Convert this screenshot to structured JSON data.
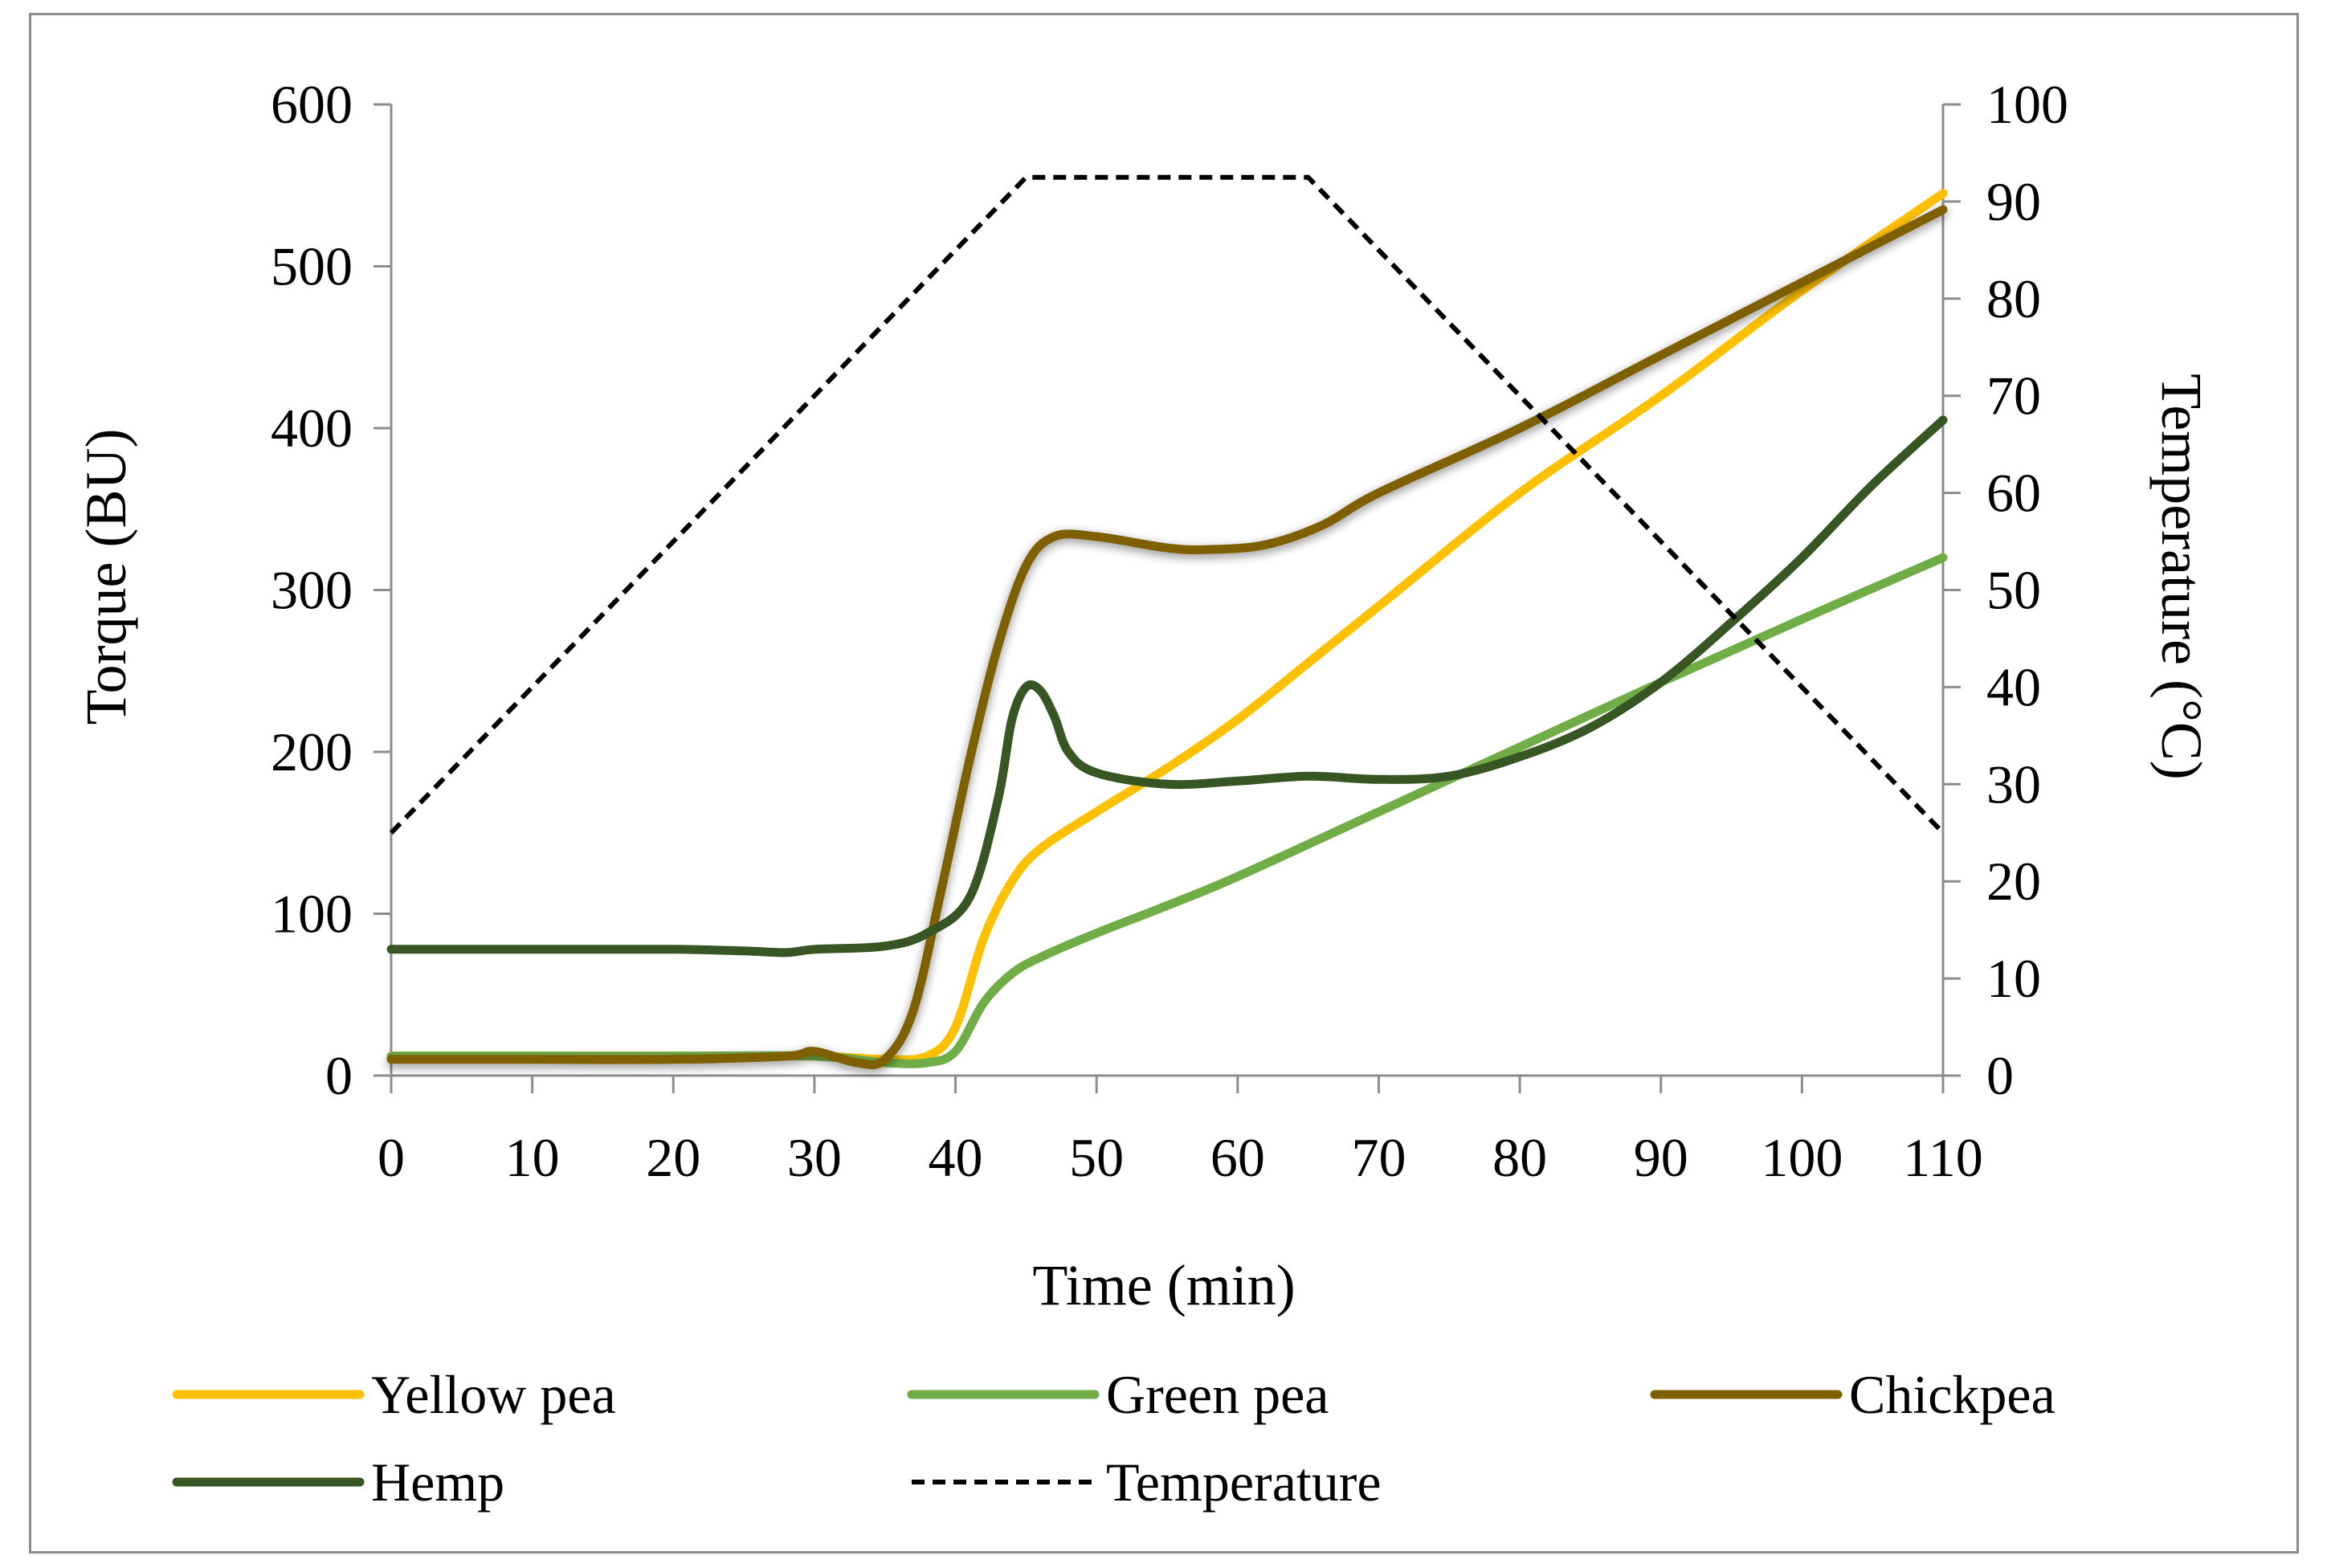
{
  "chart_data": {
    "type": "line",
    "title": "",
    "xlabel": "Time (min)",
    "ylabel": "Torque (BU)",
    "y2label": "Temperature (°C)",
    "xlim": [
      0,
      110
    ],
    "ylim": [
      0,
      600
    ],
    "y2lim": [
      0,
      100
    ],
    "xticks": [
      0,
      10,
      20,
      30,
      40,
      50,
      60,
      70,
      80,
      90,
      100,
      110
    ],
    "yticks": [
      0,
      100,
      200,
      300,
      400,
      500,
      600
    ],
    "y2ticks": [
      0,
      10,
      20,
      30,
      40,
      50,
      60,
      70,
      80,
      90,
      100
    ],
    "legend_position": "bottom",
    "series": [
      {
        "name": "Yellow pea",
        "axis": "left",
        "color": "#FFC000",
        "dash": "solid",
        "x": [
          0,
          10,
          20,
          30,
          35,
          38,
          40,
          42,
          44,
          46,
          50,
          55,
          60,
          65,
          70,
          80,
          90,
          100,
          110
        ],
        "values": [
          12,
          12,
          12,
          12,
          10,
          12,
          30,
          85,
          120,
          140,
          163,
          190,
          220,
          255,
          290,
          360,
          420,
          485,
          545
        ]
      },
      {
        "name": "Green pea",
        "axis": "left",
        "color": "#70AD47",
        "dash": "solid",
        "x": [
          0,
          10,
          20,
          30,
          35,
          38,
          40,
          42,
          44,
          46,
          50,
          55,
          60,
          70,
          80,
          90,
          100,
          110
        ],
        "values": [
          12,
          12,
          12,
          12,
          8,
          8,
          15,
          45,
          63,
          73,
          88,
          105,
          123,
          163,
          203,
          243,
          282,
          320
        ]
      },
      {
        "name": "Chickpea",
        "axis": "left",
        "color": "#7F6000",
        "dash": "solid",
        "x": [
          0,
          10,
          20,
          28,
          30,
          33,
          35,
          37,
          39,
          41,
          43,
          45,
          47,
          50,
          55,
          58,
          62,
          66,
          70,
          80,
          90,
          100,
          110
        ],
        "values": [
          10,
          10,
          10,
          12,
          15,
          8,
          10,
          40,
          115,
          195,
          265,
          315,
          333,
          333,
          326,
          325,
          328,
          340,
          360,
          400,
          445,
          490,
          535
        ]
      },
      {
        "name": "Hemp",
        "axis": "left",
        "color": "#375623",
        "dash": "solid",
        "x": [
          0,
          10,
          20,
          25,
          28,
          30,
          35,
          38,
          41,
          43,
          44,
          45,
          46,
          47,
          48,
          50,
          55,
          60,
          65,
          70,
          75,
          80,
          85,
          90,
          95,
          100,
          105,
          110
        ],
        "values": [
          78,
          78,
          78,
          77,
          76,
          78,
          80,
          88,
          110,
          170,
          220,
          240,
          238,
          222,
          200,
          187,
          180,
          182,
          185,
          183,
          185,
          197,
          215,
          243,
          280,
          320,
          365,
          405
        ]
      },
      {
        "name": "Temperature",
        "axis": "right",
        "color": "#000000",
        "dash": "dashed",
        "x": [
          0,
          45,
          65,
          110
        ],
        "values": [
          25,
          92.5,
          92.5,
          25
        ]
      }
    ],
    "legend": [
      {
        "label": "Yellow pea",
        "color": "#FFC000",
        "dash": "solid"
      },
      {
        "label": "Green pea",
        "color": "#70AD47",
        "dash": "solid"
      },
      {
        "label": "Chickpea",
        "color": "#7F6000",
        "dash": "solid"
      },
      {
        "label": "Hemp",
        "color": "#375623",
        "dash": "solid"
      },
      {
        "label": "Temperature",
        "color": "#000000",
        "dash": "dashed"
      }
    ]
  }
}
